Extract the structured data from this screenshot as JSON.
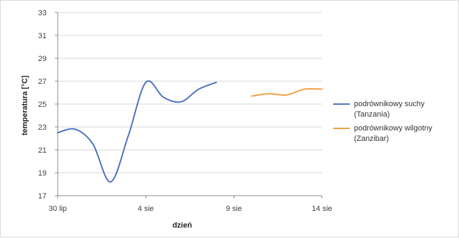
{
  "chart_data": {
    "type": "line",
    "title": "",
    "xlabel": "dzień",
    "ylabel": "temperatura [°C]",
    "ylim": [
      17,
      33
    ],
    "yticks": [
      17,
      19,
      21,
      23,
      25,
      27,
      29,
      31,
      33
    ],
    "xlim": [
      "2010-07-30",
      "2010-08-14"
    ],
    "xticks": [
      {
        "date": "2010-07-30",
        "label": "30 lip"
      },
      {
        "date": "2010-08-04",
        "label": "4 sie"
      },
      {
        "date": "2010-08-09",
        "label": "9 sie"
      },
      {
        "date": "2010-08-14",
        "label": "14 sie"
      }
    ],
    "grid": true,
    "legend": "right",
    "series": [
      {
        "name": "podrównikowy suchy (Tanzania)",
        "name_lines": [
          "podrównikowy suchy",
          "(Tanzania)"
        ],
        "color": "#4a72c2",
        "x": [
          "2010-07-30",
          "2010-07-31",
          "2010-08-01",
          "2010-08-02",
          "2010-08-03",
          "2010-08-04",
          "2010-08-05",
          "2010-08-06",
          "2010-08-07",
          "2010-08-08"
        ],
        "y": [
          22.5,
          22.8,
          21.5,
          18.2,
          22.2,
          26.9,
          25.6,
          25.2,
          26.3,
          26.9
        ]
      },
      {
        "name": "podrównikowy wilgotny (Zanzibar)",
        "name_lines": [
          "podrównikowy wilgotny",
          "(Zanzibar)"
        ],
        "color": "#f0a045",
        "x": [
          "2010-08-10",
          "2010-08-11",
          "2010-08-12",
          "2010-08-13",
          "2010-08-14"
        ],
        "y": [
          25.7,
          25.9,
          25.8,
          26.3,
          26.3
        ]
      }
    ]
  }
}
